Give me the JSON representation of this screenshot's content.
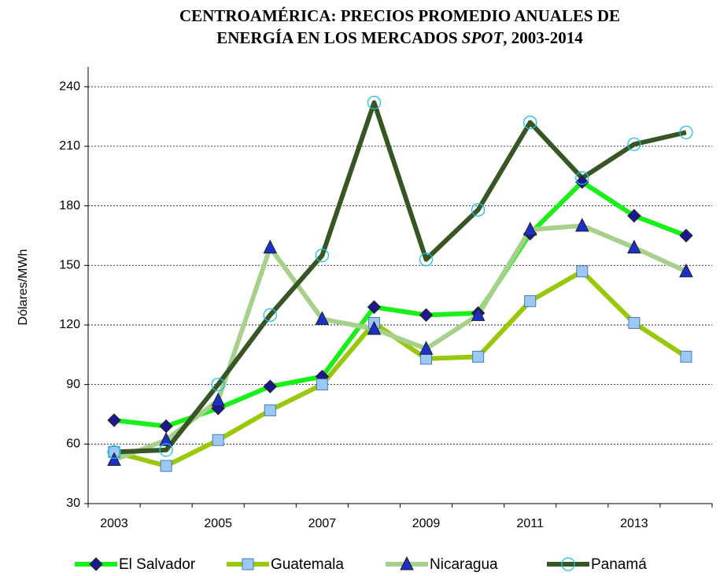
{
  "chart_data": {
    "type": "line",
    "title": [
      "CENTROAMÉRICA: PRECIOS PROMEDIO ANUALES DE",
      "ENERGÍA EN LOS MERCADOS ",
      "SPOT",
      ", 2003-2014"
    ],
    "y_label": "Dólares/MWh",
    "categories": [
      2003,
      null,
      2005,
      null,
      2007,
      null,
      2009,
      null,
      2011,
      null,
      2013,
      null
    ],
    "ylim": [
      30,
      250
    ],
    "yticks": [
      30,
      60,
      90,
      120,
      150,
      180,
      210,
      240
    ],
    "grid": true,
    "legend": "bottom",
    "series": [
      {
        "name": "El Salvador",
        "color": "#19f019",
        "marker": "diamond",
        "marker_color": "#1a1a8c",
        "values": [
          72,
          69,
          78,
          89,
          94,
          129,
          125,
          126,
          166,
          192,
          175,
          165
        ]
      },
      {
        "name": "Guatemala",
        "color": "#99c80a",
        "marker": "square",
        "marker_color": "#9cc8f5",
        "values": [
          56,
          49,
          62,
          77,
          90,
          121,
          103,
          104,
          132,
          147,
          121,
          104
        ]
      },
      {
        "name": "Nicaragua",
        "color": "#a8d08d",
        "marker": "triangle",
        "marker_color": "#1c2fc8",
        "values": [
          52,
          62,
          82,
          159,
          123,
          118,
          108,
          125,
          168,
          170,
          159,
          147
        ]
      },
      {
        "name": "Panamá",
        "color": "#375623",
        "marker": "circle",
        "marker_color": "#19c3e6",
        "values": [
          56,
          57,
          90,
          125,
          155,
          232,
          153,
          178,
          222,
          194,
          211,
          217
        ]
      }
    ]
  }
}
